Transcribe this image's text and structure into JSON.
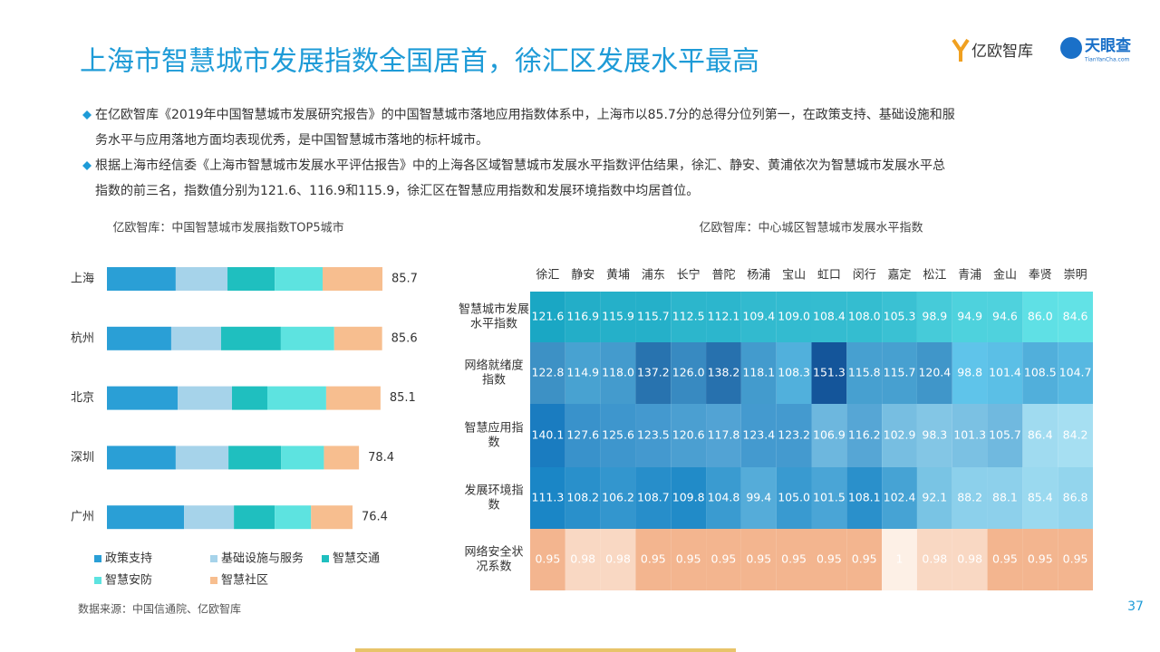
{
  "title": "上海市智慧城市发展指数全国居首，徐汇区发展水平最高",
  "logos": [
    "亿欧智库",
    "天眼查",
    "TianYanCha.com"
  ],
  "bullets": [
    [
      "在亿欧智库《2019年中国智慧城市发展研究报告》的中国智慧城市落地应用指数体系中，上海市以85.7分的总得分位列第一，在政策支持、基础设施和服",
      "务水平与应用落地方面均表现优秀，是中国智慧城市落地的标杆城市。"
    ],
    [
      "根据上海市经信委《上海市智慧城市发展水平评估报告》中的上海各区域智慧城市发展水平指数评估结果，徐汇、静安、黄浦依次为智慧城市发展水平总",
      "指数的前三名，指数值分别为121.6、116.9和115.9，徐汇区在智慧应用指数和发展环境指数中均居首位。"
    ]
  ],
  "source": "数据来源：中国信通院、亿欧智库",
  "page_number": "37",
  "chart_data": [
    {
      "type": "stacked-barh",
      "title": "亿欧智库：中国智慧城市发展指数TOP5城市",
      "categories": [
        "上海",
        "杭州",
        "北京",
        "深圳",
        "广州"
      ],
      "totals": [
        85.7,
        85.6,
        85.1,
        78.4,
        76.4
      ],
      "series": [
        {
          "name": "政策支持",
          "color": "#2a9fd6",
          "values": [
            21.4,
            20.0,
            22.0,
            21.4,
            24.0
          ]
        },
        {
          "name": "基础设施与服务",
          "color": "#a6d3ea",
          "values": [
            16.1,
            15.5,
            16.9,
            16.4,
            15.5
          ]
        },
        {
          "name": "智慧交通",
          "color": "#1fbfbf",
          "values": [
            14.7,
            18.6,
            11.0,
            16.4,
            12.7
          ]
        },
        {
          "name": "智慧安防",
          "color": "#5de3e0",
          "values": [
            14.9,
            16.6,
            18.3,
            13.3,
            11.3
          ]
        },
        {
          "name": "智慧社区",
          "color": "#f7be8f",
          "values": [
            18.6,
            14.9,
            16.9,
            10.9,
            12.9
          ]
        }
      ]
    },
    {
      "type": "heatmap",
      "title": "亿欧智库：中心城区智慧城市发展水平指数",
      "columns": [
        "徐汇",
        "静安",
        "黄埔",
        "浦东",
        "长宁",
        "普陀",
        "杨浦",
        "宝山",
        "虹口",
        "闵行",
        "嘉定",
        "松江",
        "青浦",
        "金山",
        "奉贤",
        "崇明"
      ],
      "rows": [
        {
          "name": [
            "智慧城市发展",
            "水平指数"
          ],
          "colors": [
            "#62e2e6",
            "#1aa7c4"
          ],
          "values": [
            121.6,
            116.9,
            115.9,
            115.7,
            112.5,
            112.1,
            109.4,
            109.0,
            108.4,
            108.0,
            105.3,
            98.9,
            94.9,
            94.6,
            86.0,
            84.6
          ],
          "value_labels": [
            "121.6",
            "116.9",
            "115.9",
            "115.7",
            "112.5",
            "112.1",
            "109.4",
            "109.0",
            "108.4",
            "108.0",
            "105.3",
            "98.9",
            "94.9",
            "94.6",
            "86.0",
            "84.6"
          ]
        },
        {
          "name": [
            "网络就绪度",
            "指数"
          ],
          "colors": [
            "#5fc4ea",
            "#14559a"
          ],
          "values": [
            122.8,
            114.9,
            118.0,
            137.2,
            126.0,
            138.2,
            118.1,
            108.3,
            151.3,
            115.8,
            115.7,
            120.4,
            98.8,
            101.4,
            108.5,
            104.7
          ],
          "value_labels": [
            "122.8",
            "114.9",
            "118.0",
            "137.2",
            "126.0",
            "138.2",
            "118.1",
            "108.3",
            "151.3",
            "115.8",
            "115.7",
            "120.4",
            "98.8",
            "101.4",
            "108.5",
            "104.7"
          ]
        },
        {
          "name": [
            "智慧应用指",
            "数"
          ],
          "colors": [
            "#a6dff2",
            "#1a7cc0"
          ],
          "values": [
            140.1,
            127.6,
            125.6,
            123.5,
            120.6,
            117.8,
            123.4,
            123.2,
            106.9,
            116.2,
            102.9,
            98.3,
            101.3,
            105.7,
            86.4,
            84.2
          ],
          "value_labels": [
            "140.1",
            "127.6",
            "125.6",
            "123.5",
            "120.6",
            "117.8",
            "123.4",
            "123.2",
            "106.9",
            "116.2",
            "102.9",
            "98.3",
            "101.3",
            "105.7",
            "86.4",
            "84.2"
          ]
        },
        {
          "name": [
            "发展环境指",
            "数"
          ],
          "colors": [
            "#9ad9ef",
            "#1a86c6"
          ],
          "values": [
            111.3,
            108.2,
            106.2,
            108.7,
            109.8,
            104.8,
            99.4,
            105.0,
            101.5,
            108.1,
            102.4,
            92.1,
            88.2,
            88.1,
            85.4,
            86.8
          ],
          "value_labels": [
            "111.3",
            "108.2",
            "106.2",
            "108.7",
            "109.8",
            "104.8",
            "99.4",
            "105.0",
            "101.5",
            "108.1",
            "102.4",
            "92.1",
            "88.2",
            "88.1",
            "85.4",
            "86.8"
          ]
        },
        {
          "name": [
            "网络安全状",
            "况系数"
          ],
          "colors": [
            "#f3b58f",
            "#fdf0e6"
          ],
          "values": [
            0.95,
            0.98,
            0.98,
            0.95,
            0.95,
            0.95,
            0.95,
            0.95,
            0.95,
            0.95,
            1,
            0.98,
            0.98,
            0.95,
            0.95,
            0.95
          ]
        }
      ]
    }
  ]
}
